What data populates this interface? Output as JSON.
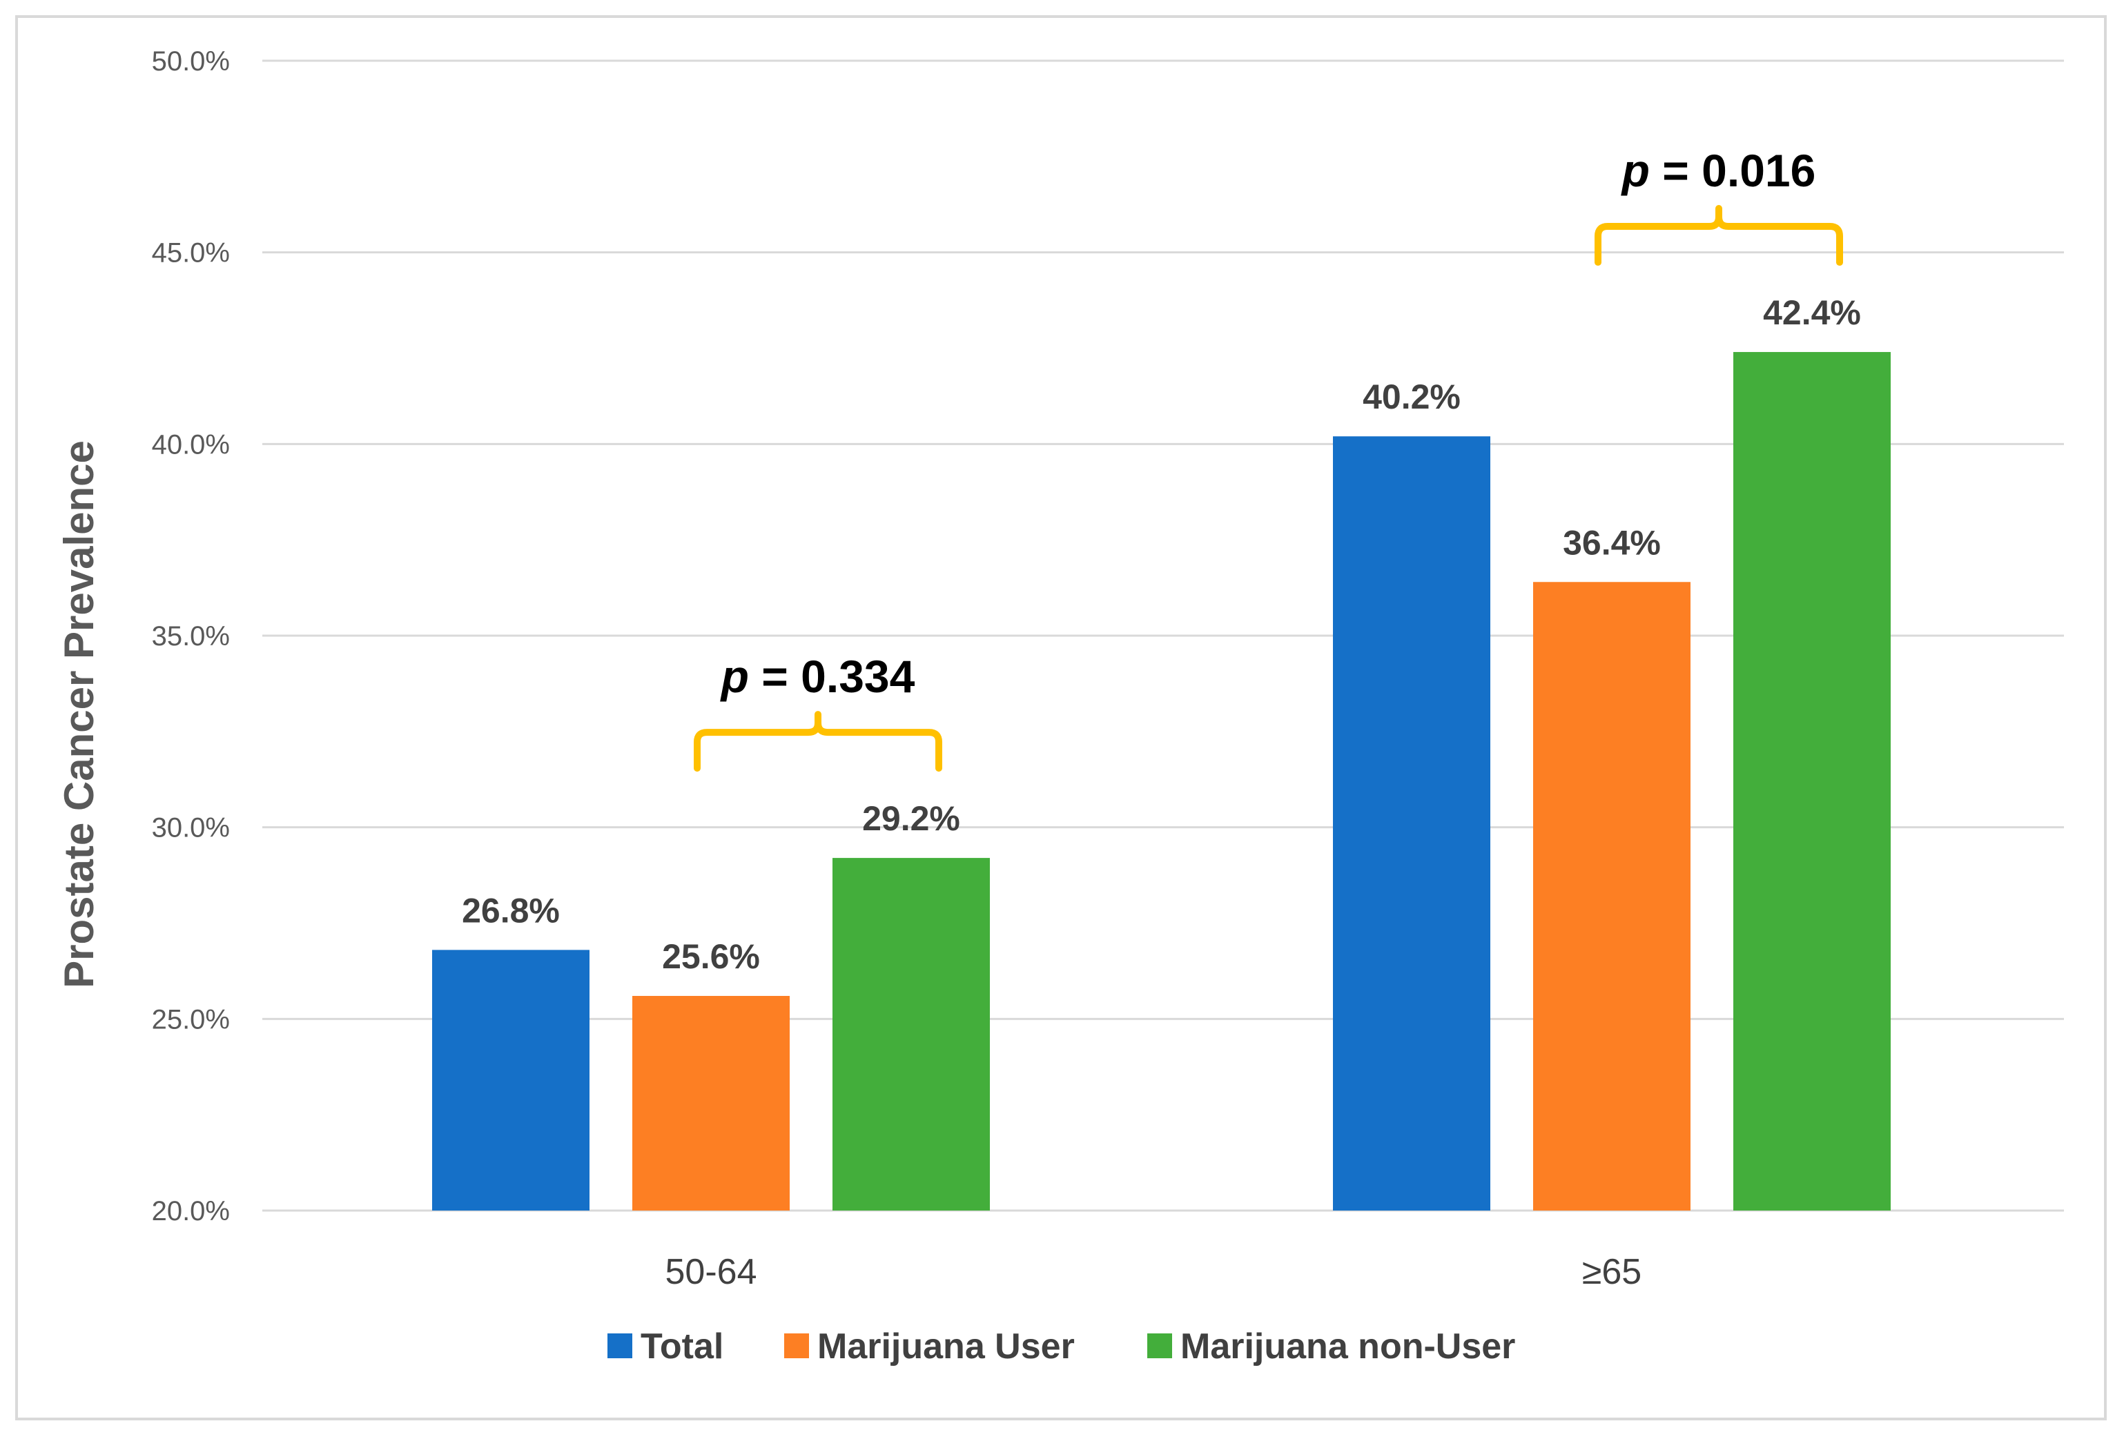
{
  "chart_data": {
    "type": "bar",
    "title": "",
    "xlabel": "",
    "ylabel": "Prostate Cancer Prevalence",
    "ylim": [
      20.0,
      50.0
    ],
    "yticks": [
      "20.0%",
      "25.0%",
      "30.0%",
      "35.0%",
      "40.0%",
      "45.0%",
      "50.0%"
    ],
    "ytick_values": [
      20,
      25,
      30,
      35,
      40,
      45,
      50
    ],
    "grid": true,
    "categories": [
      "50-64",
      "≥65"
    ],
    "series": [
      {
        "name": "Total",
        "color": "#1570c8",
        "values": [
          26.8,
          40.2
        ],
        "labels": [
          "26.8%",
          "40.2%"
        ]
      },
      {
        "name": "Marijuana User",
        "color": "#fd7f23",
        "values": [
          25.6,
          36.4
        ],
        "labels": [
          "25.6%",
          "36.4%"
        ]
      },
      {
        "name": "Marijuana non-User",
        "color": "#43ae3b",
        "values": [
          29.2,
          42.4
        ],
        "labels": [
          "29.2%",
          "42.4%"
        ]
      }
    ],
    "annotations": [
      {
        "category": "50-64",
        "between": [
          "Marijuana User",
          "Marijuana non-User"
        ],
        "p_symbol": "p",
        "p_text": " = 0.334"
      },
      {
        "category": "≥65",
        "between": [
          "Marijuana User",
          "Marijuana non-User"
        ],
        "p_symbol": "p",
        "p_text": " = 0.016"
      }
    ],
    "legend_position": "bottom-center",
    "bracket_color": "#ffc000"
  }
}
